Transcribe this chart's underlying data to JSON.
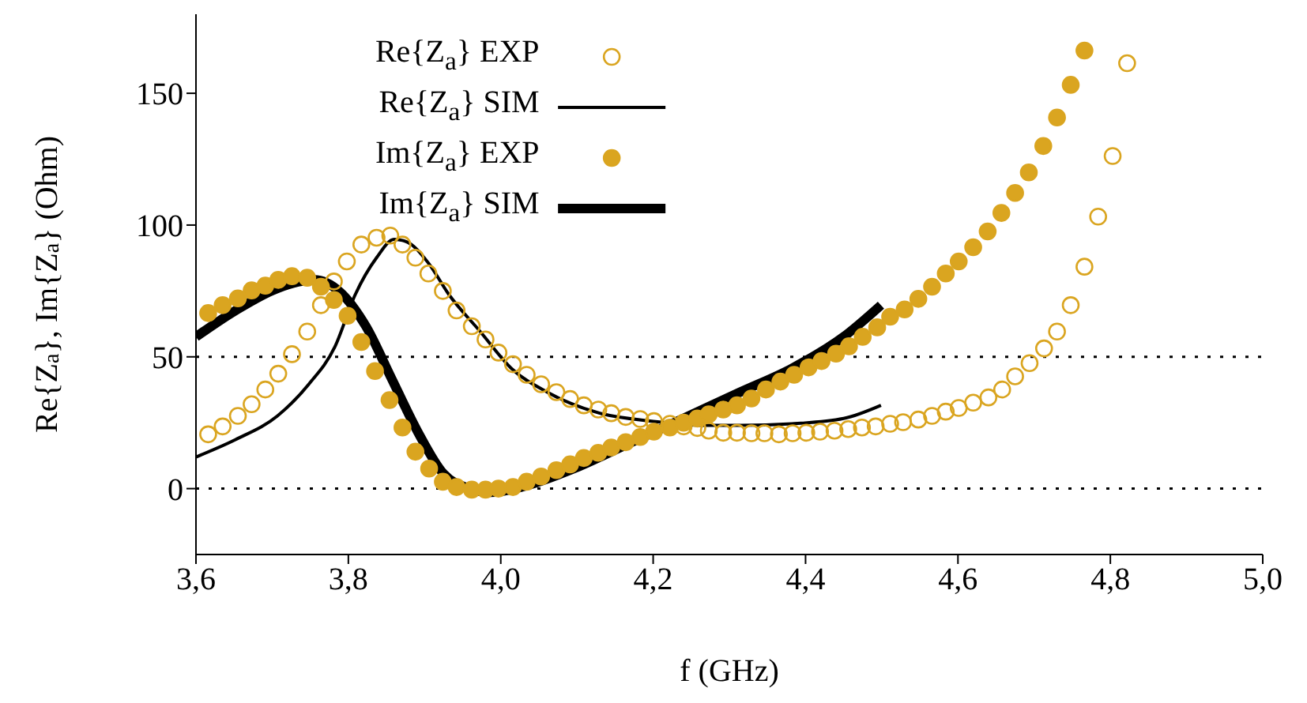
{
  "chart_data": {
    "type": "line",
    "xlabel": "f (GHz)",
    "ylabel": "Re{Z$_{a}$}, Im{Z$_{a}$} (Ohm)",
    "xlim": [
      3.6,
      5.0
    ],
    "ylim": [
      -25,
      180
    ],
    "xticks": [
      {
        "value": 3.6,
        "label": "3,6"
      },
      {
        "value": 3.8,
        "label": "3,8"
      },
      {
        "value": 4.0,
        "label": "4,0"
      },
      {
        "value": 4.2,
        "label": "4,2"
      },
      {
        "value": 4.4,
        "label": "4,4"
      },
      {
        "value": 4.6,
        "label": "4,6"
      },
      {
        "value": 4.8,
        "label": "4,8"
      },
      {
        "value": 5.0,
        "label": "5,0"
      }
    ],
    "yticks": [
      0,
      50,
      100,
      150
    ],
    "legend": "top",
    "ref_lines": [
      {
        "axis": "y",
        "value": 0,
        "color": "#000000",
        "line_style": "dotted"
      },
      {
        "axis": "y",
        "value": 50,
        "color": "#000000",
        "line_style": "dotted"
      }
    ],
    "series": [
      {
        "name": "Re{Z$_{a}$} EXP",
        "type": "scatter",
        "marker": "circle",
        "color": "#daa520",
        "x": [
          3.616,
          3.635,
          3.655,
          3.673,
          3.691,
          3.708,
          3.726,
          3.746,
          3.764,
          3.781,
          3.798,
          3.817,
          3.837,
          3.855,
          3.871,
          3.888,
          3.905,
          3.924,
          3.942,
          3.962,
          3.98,
          3.997,
          4.016,
          4.034,
          4.053,
          4.073,
          4.091,
          4.109,
          4.128,
          4.145,
          4.164,
          4.183,
          4.201,
          4.222,
          4.24,
          4.258,
          4.273,
          4.292,
          4.31,
          4.329,
          4.346,
          4.365,
          4.383,
          4.401,
          4.419,
          4.438,
          4.456,
          4.474,
          4.492,
          4.511,
          4.528,
          4.548,
          4.566,
          4.584,
          4.601,
          4.62,
          4.64,
          4.658,
          4.675,
          4.694,
          4.713,
          4.73,
          4.748,
          4.766,
          4.784,
          4.803,
          4.822
        ],
        "values": [
          20.6,
          23.6,
          27.6,
          32,
          37.6,
          43.6,
          51,
          59.6,
          69.6,
          78.6,
          86.2,
          92.6,
          95.2,
          96,
          92.6,
          87.6,
          81.6,
          75,
          67.6,
          61.6,
          56.6,
          51.6,
          47.2,
          43.2,
          39.6,
          36.6,
          34,
          31.6,
          30,
          28.6,
          27.2,
          26.4,
          25.6,
          24.6,
          23.6,
          23,
          22,
          21.2,
          21.2,
          21,
          21,
          20.6,
          21,
          21.2,
          21.6,
          22,
          22.6,
          23.2,
          23.6,
          24.6,
          25.2,
          26.2,
          27.6,
          29.2,
          30.6,
          32.6,
          34.6,
          37.6,
          42.6,
          47.6,
          53.2,
          59.6,
          69.6,
          84.2,
          103.2,
          126.2,
          161.4
        ]
      },
      {
        "name": "Re{Z$_{a}$} SIM",
        "type": "line",
        "marker": "none",
        "color": "#000000",
        "x": [
          3.6,
          3.652,
          3.707,
          3.748,
          3.782,
          3.809,
          3.837,
          3.86,
          3.877,
          3.905,
          3.932,
          3.973,
          4.014,
          4.061,
          4.13,
          4.198,
          4.266,
          4.314,
          4.382,
          4.45,
          4.499
        ],
        "values": [
          12,
          18.6,
          27.6,
          39.6,
          53.6,
          73.6,
          87.6,
          94.6,
          93.6,
          85.6,
          73.6,
          59.6,
          45.6,
          36.6,
          28.6,
          25.6,
          24,
          24,
          24.6,
          26.6,
          31.6
        ]
      },
      {
        "name": "Im{Z$_{a}$} EXP",
        "type": "scatter",
        "marker": "circle",
        "color": "#daa520",
        "x": [
          3.616,
          3.635,
          3.655,
          3.673,
          3.691,
          3.708,
          3.726,
          3.746,
          3.764,
          3.781,
          3.799,
          3.817,
          3.835,
          3.854,
          3.871,
          3.888,
          3.906,
          3.924,
          3.942,
          3.962,
          3.98,
          3.997,
          4.016,
          4.034,
          4.053,
          4.073,
          4.091,
          4.109,
          4.128,
          4.145,
          4.164,
          4.183,
          4.201,
          4.222,
          4.24,
          4.258,
          4.273,
          4.292,
          4.31,
          4.329,
          4.348,
          4.367,
          4.385,
          4.404,
          4.421,
          4.44,
          4.457,
          4.475,
          4.494,
          4.511,
          4.53,
          4.548,
          4.566,
          4.584,
          4.601,
          4.62,
          4.639,
          4.657,
          4.675,
          4.693,
          4.712,
          4.73,
          4.748,
          4.766
        ],
        "values": [
          66.6,
          69.6,
          72.2,
          75.2,
          77,
          79.2,
          80.6,
          80,
          76.6,
          71.6,
          65.6,
          55.6,
          44.6,
          33.6,
          23.2,
          14,
          7.6,
          2.6,
          0.6,
          -0.4,
          -0.4,
          0,
          0.6,
          2.6,
          4.6,
          7,
          9.2,
          11.6,
          13.6,
          15.6,
          17.6,
          19.6,
          21.6,
          23.2,
          25,
          26.6,
          28.2,
          30,
          31.6,
          34.2,
          37.6,
          40.6,
          43.2,
          46,
          48.4,
          51.2,
          54,
          57.6,
          61.2,
          65.2,
          68,
          72,
          76.6,
          81.6,
          86.2,
          91.6,
          97.6,
          104.6,
          112.2,
          120,
          130,
          140.8,
          153.2,
          166.2
        ]
      },
      {
        "name": "Im{Z$_{a}$} SIM",
        "type": "line",
        "marker": "none",
        "color": "#000000",
        "x": [
          3.6,
          3.652,
          3.707,
          3.755,
          3.789,
          3.823,
          3.857,
          3.891,
          3.925,
          3.959,
          3.987,
          4.027,
          4.096,
          4.164,
          4.232,
          4.314,
          4.382,
          4.45,
          4.499
        ],
        "values": [
          57.6,
          67.6,
          76,
          79.2,
          74.6,
          61.6,
          41.6,
          21.6,
          5.6,
          0,
          -1.4,
          0.6,
          7.6,
          16.6,
          25.6,
          36.6,
          45.6,
          57.6,
          69.6
        ]
      }
    ]
  }
}
